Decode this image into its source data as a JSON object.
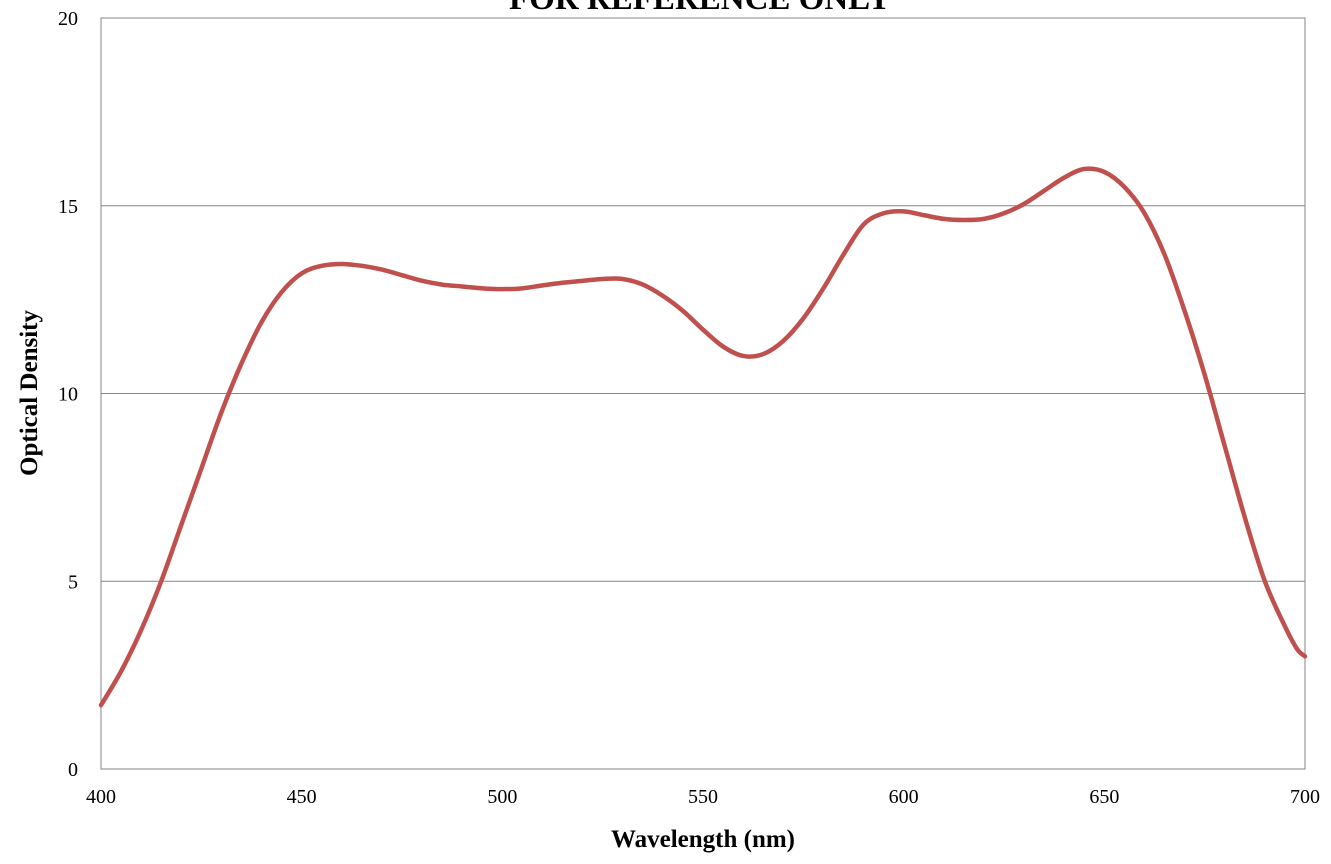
{
  "chart_data": {
    "type": "line",
    "title": "FOR REFERENCE ONLY",
    "xlabel": "Wavelength (nm)",
    "ylabel": "Optical Density",
    "xlim": [
      400,
      700
    ],
    "ylim": [
      0,
      20
    ],
    "x_ticks": [
      "400",
      "450",
      "500",
      "550",
      "600",
      "650",
      "700"
    ],
    "y_ticks": [
      "0",
      "5",
      "10",
      "15",
      "20"
    ],
    "grid": "horizontal",
    "legend": "none",
    "series": [
      {
        "color": "#c0504d",
        "points": [
          [
            400,
            1.7
          ],
          [
            405,
            2.6
          ],
          [
            410,
            3.7
          ],
          [
            415,
            5.0
          ],
          [
            420,
            6.5
          ],
          [
            425,
            8.0
          ],
          [
            430,
            9.5
          ],
          [
            435,
            10.8
          ],
          [
            440,
            11.9
          ],
          [
            445,
            12.7
          ],
          [
            450,
            13.2
          ],
          [
            455,
            13.4
          ],
          [
            460,
            13.45
          ],
          [
            465,
            13.4
          ],
          [
            470,
            13.3
          ],
          [
            475,
            13.15
          ],
          [
            480,
            13.0
          ],
          [
            485,
            12.9
          ],
          [
            490,
            12.85
          ],
          [
            495,
            12.8
          ],
          [
            500,
            12.78
          ],
          [
            505,
            12.8
          ],
          [
            510,
            12.88
          ],
          [
            515,
            12.95
          ],
          [
            520,
            13.0
          ],
          [
            525,
            13.05
          ],
          [
            530,
            13.05
          ],
          [
            535,
            12.9
          ],
          [
            540,
            12.6
          ],
          [
            545,
            12.2
          ],
          [
            550,
            11.7
          ],
          [
            555,
            11.25
          ],
          [
            560,
            11.0
          ],
          [
            565,
            11.05
          ],
          [
            570,
            11.4
          ],
          [
            575,
            12.0
          ],
          [
            580,
            12.8
          ],
          [
            585,
            13.7
          ],
          [
            590,
            14.5
          ],
          [
            595,
            14.8
          ],
          [
            600,
            14.85
          ],
          [
            605,
            14.75
          ],
          [
            610,
            14.65
          ],
          [
            615,
            14.62
          ],
          [
            620,
            14.65
          ],
          [
            625,
            14.8
          ],
          [
            630,
            15.05
          ],
          [
            635,
            15.4
          ],
          [
            640,
            15.75
          ],
          [
            645,
            15.98
          ],
          [
            650,
            15.9
          ],
          [
            655,
            15.5
          ],
          [
            660,
            14.8
          ],
          [
            665,
            13.7
          ],
          [
            670,
            12.2
          ],
          [
            675,
            10.5
          ],
          [
            680,
            8.6
          ],
          [
            685,
            6.7
          ],
          [
            690,
            5.0
          ],
          [
            695,
            3.8
          ],
          [
            698,
            3.2
          ],
          [
            700,
            3.0
          ]
        ]
      }
    ]
  }
}
